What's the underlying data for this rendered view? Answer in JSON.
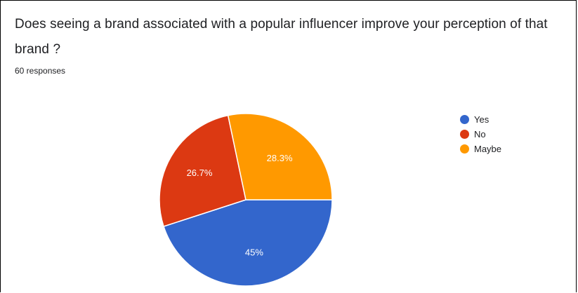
{
  "question": {
    "title": "Does seeing a brand associated with a popular influencer improve your perception of that brand ?",
    "responses": "60 responses"
  },
  "chart_data": {
    "type": "pie",
    "title": "Does seeing a brand associated with a popular influencer improve your perception of that brand ?",
    "subtitle": "60 responses",
    "legend_position": "right",
    "slices": [
      {
        "name": "Yes",
        "value": 45,
        "label": "45%",
        "color": "#3366cc"
      },
      {
        "name": "No",
        "value": 26.7,
        "label": "26.7%",
        "color": "#dc3912"
      },
      {
        "name": "Maybe",
        "value": 28.3,
        "label": "28.3%",
        "color": "#ff9900"
      }
    ]
  }
}
